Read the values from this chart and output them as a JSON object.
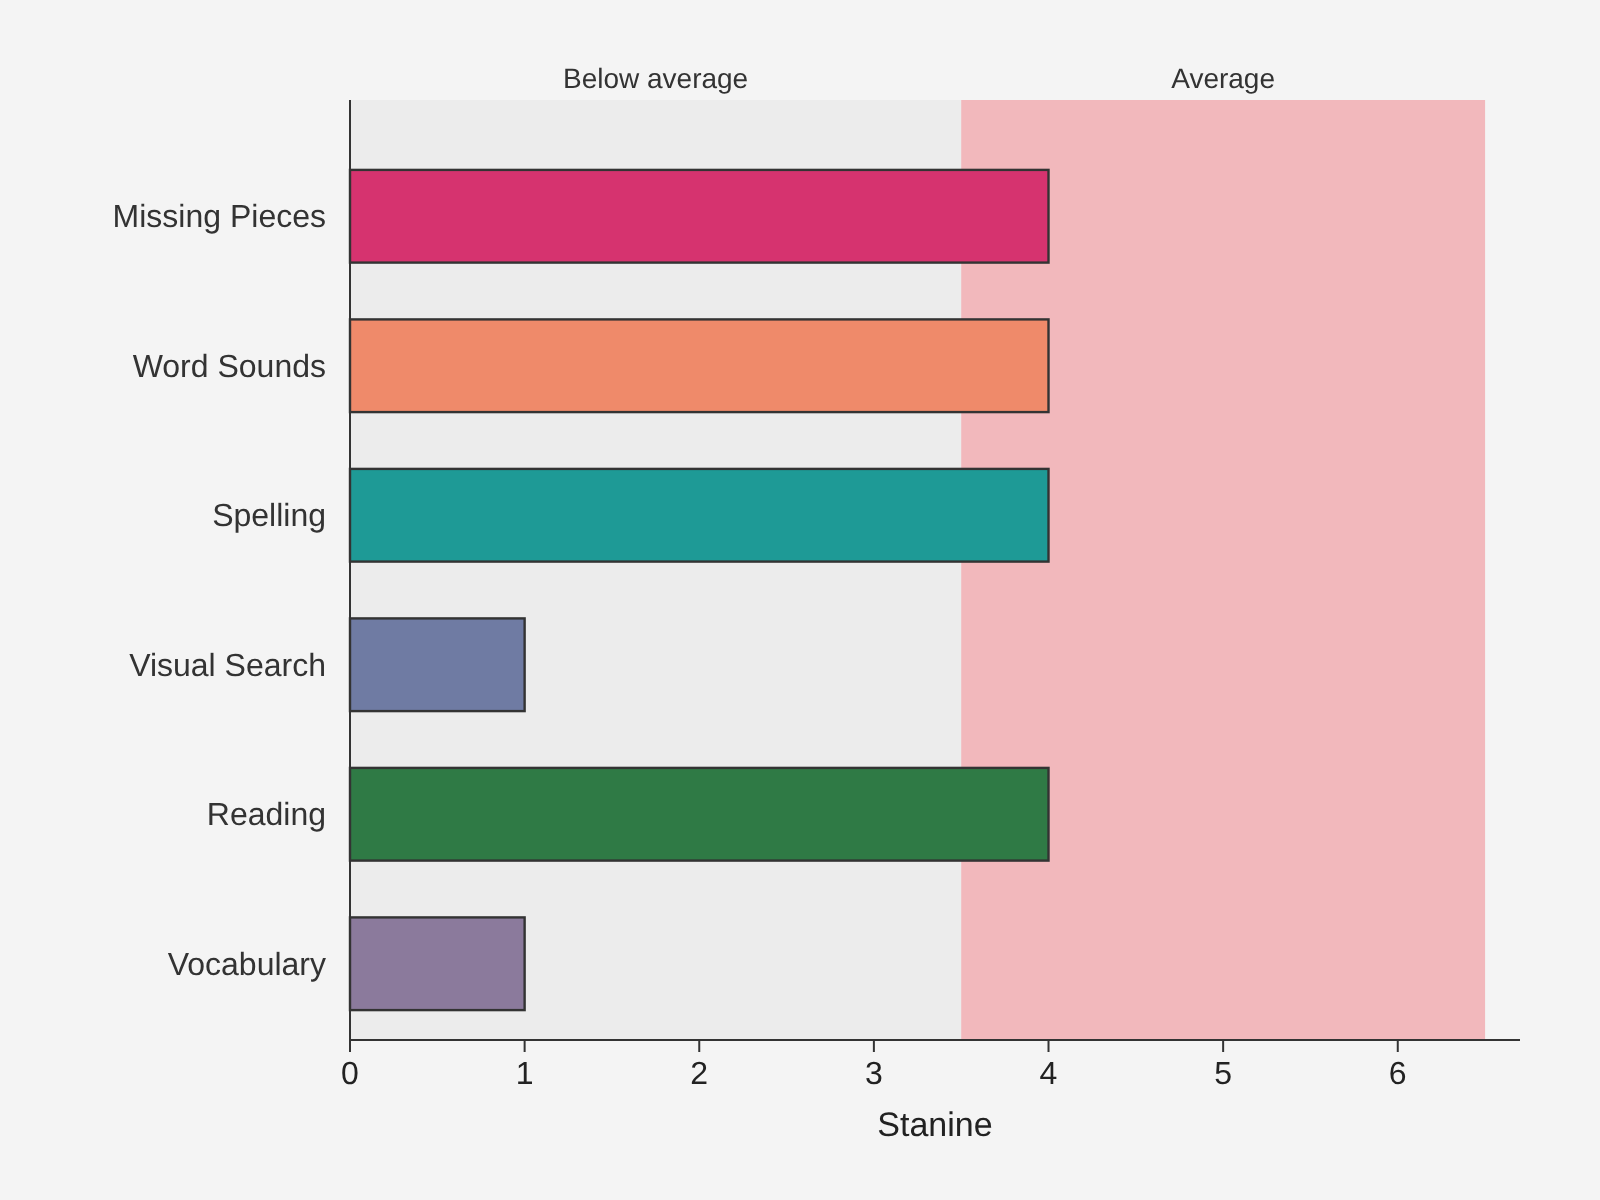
{
  "chart_data": {
    "type": "bar",
    "orientation": "horizontal",
    "xlabel": "Stanine",
    "categories": [
      "Missing Pieces",
      "Word Sounds",
      "Spelling",
      "Visual Search",
      "Reading",
      "Vocabulary"
    ],
    "values": [
      4,
      4,
      4,
      1,
      4,
      1
    ],
    "colors": [
      "#d6336f",
      "#ef8a6a",
      "#1e9a96",
      "#6f7ba3",
      "#2f7a45",
      "#8b7a9c"
    ],
    "xlim": [
      0,
      6.7
    ],
    "xticks": [
      0,
      1,
      2,
      3,
      4,
      5,
      6
    ],
    "bands": [
      {
        "axis": "x",
        "from": 0,
        "to": 3.5,
        "label": "Below average",
        "color": "#ececec"
      },
      {
        "axis": "x",
        "from": 3.5,
        "to": 6.5,
        "label": "Average",
        "color": "#f2b8bc"
      }
    ]
  }
}
